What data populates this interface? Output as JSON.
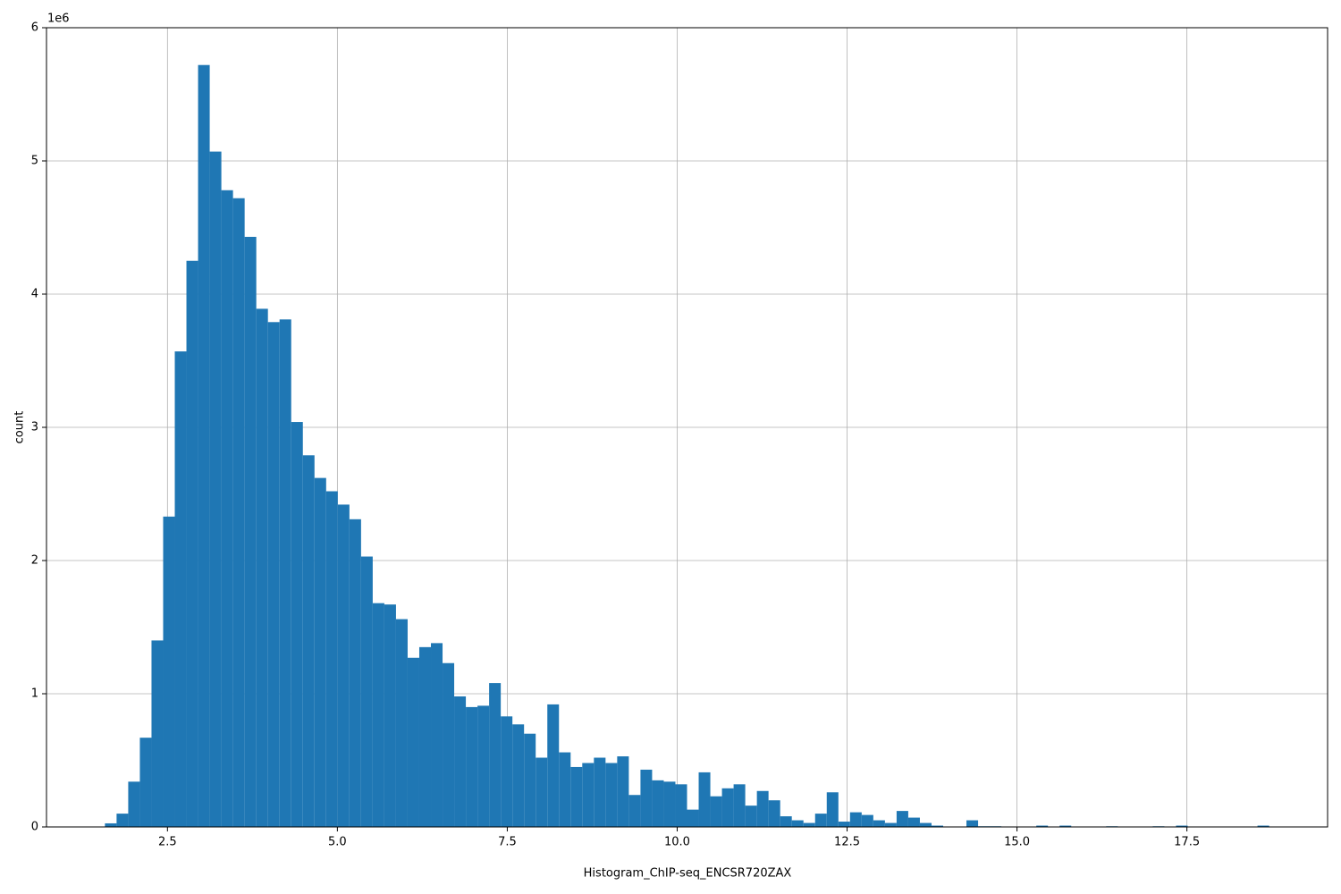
{
  "chart_data": {
    "type": "histogram",
    "xlabel": "Histogram_ChIP-seq_ENCSR720ZAX",
    "ylabel": "count",
    "y_offset_label": "1e6",
    "color": "#1f77b4",
    "grid": true,
    "bins": [
      1.58,
      1.7513,
      1.9226,
      2.0939,
      2.2652,
      2.4365,
      2.6078,
      2.7791,
      2.9504,
      3.1217,
      3.293,
      3.4643,
      3.6356,
      3.8069,
      3.9782,
      4.1495,
      4.3208,
      4.4921,
      4.6634,
      4.8347,
      5.006,
      5.1773,
      5.3486,
      5.5199,
      5.6912,
      5.8625,
      6.0338,
      6.2051,
      6.3764,
      6.5477,
      6.719,
      6.8903,
      7.0616,
      7.2329,
      7.4042,
      7.5755,
      7.7468,
      7.9181,
      8.0894,
      8.2607,
      8.432,
      8.6033,
      8.7746,
      8.9459,
      9.1172,
      9.2885,
      9.4598,
      9.6311,
      9.8024,
      9.9737,
      10.145,
      10.3163,
      10.4876,
      10.6589,
      10.8302,
      11.0015,
      11.1728,
      11.3441,
      11.5154,
      11.6867,
      11.858,
      12.0293,
      12.2006,
      12.3719,
      12.5432,
      12.7145,
      12.8858,
      13.0571,
      13.2284,
      13.3997,
      13.571,
      13.7423,
      13.9136,
      14.0849,
      14.2562,
      14.4275,
      14.5988,
      14.7701,
      14.9414,
      15.1127,
      15.284,
      15.4553,
      15.6266,
      15.7979,
      15.9692,
      16.1405,
      16.3118,
      16.4831,
      16.6544,
      16.8257,
      16.997,
      17.1683,
      17.3396,
      17.5109,
      17.6822,
      17.8535,
      18.0248,
      18.1961,
      18.3674,
      18.5387,
      18.71
    ],
    "values": [
      0.027,
      0.1,
      0.34,
      0.67,
      1.4,
      2.33,
      3.57,
      4.25,
      5.72,
      5.07,
      4.78,
      4.72,
      4.43,
      3.89,
      3.79,
      3.81,
      3.04,
      2.79,
      2.62,
      2.52,
      2.42,
      2.31,
      2.03,
      1.68,
      1.67,
      1.56,
      1.27,
      1.35,
      1.38,
      1.23,
      0.98,
      0.9,
      0.91,
      1.08,
      0.83,
      0.77,
      0.7,
      0.52,
      0.92,
      0.56,
      0.45,
      0.48,
      0.52,
      0.48,
      0.53,
      0.24,
      0.43,
      0.35,
      0.34,
      0.32,
      0.13,
      0.41,
      0.23,
      0.29,
      0.32,
      0.16,
      0.27,
      0.2,
      0.08,
      0.05,
      0.03,
      0.1,
      0.26,
      0.04,
      0.11,
      0.09,
      0.05,
      0.03,
      0.12,
      0.07,
      0.03,
      0.01,
      0,
      0,
      0.05,
      0.005,
      0.005,
      0,
      0,
      0,
      0.01,
      0,
      0.01,
      0,
      0,
      0,
      0.005,
      0,
      0,
      0,
      0.005,
      0,
      0.01,
      0,
      0,
      0,
      0,
      0,
      0,
      0.01
    ],
    "xlim": [
      0.72,
      19.57
    ],
    "ylim": [
      0,
      6
    ],
    "xticks": [
      2.5,
      {
        "value": 5,
        "label": "5.0"
      },
      7.5,
      {
        "value": 10,
        "label": "10.0"
      },
      12.5,
      {
        "value": 15,
        "label": "15.0"
      },
      17.5
    ],
    "yticks": [
      0,
      1,
      2,
      3,
      4,
      5,
      6
    ]
  }
}
